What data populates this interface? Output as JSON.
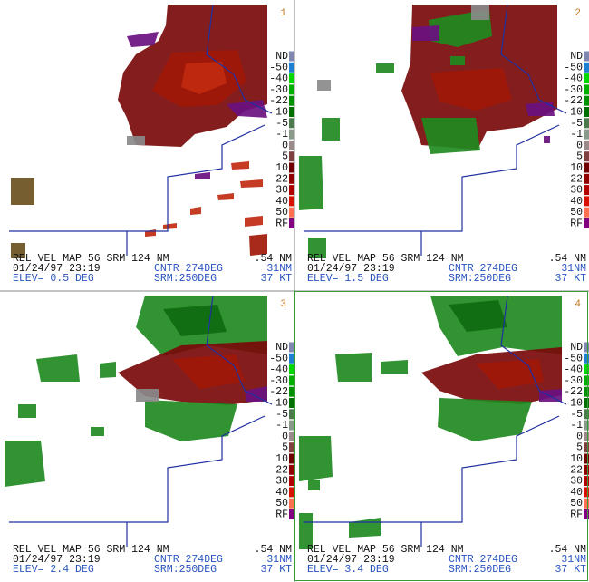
{
  "panels": [
    {
      "number": "1",
      "footer": [
        [
          "REL VEL MAP 56 SRM 124 NM",
          ".54 NM"
        ],
        [
          "01/24/97 23:19",
          "CNTR 274DEG",
          "31NM"
        ],
        [
          "ELEV= 0.5 DEG",
          "SRM:250DEG",
          "37 KT"
        ]
      ]
    },
    {
      "number": "2",
      "footer": [
        [
          "REL VEL MAP 56 SRM 124 NM",
          ".54 NM"
        ],
        [
          "01/24/97 23:19",
          "CNTR 274DEG",
          "31NM"
        ],
        [
          "ELEV= 1.5 DEG",
          "SRM:250DEG",
          "37 KT"
        ]
      ]
    },
    {
      "number": "3",
      "footer": [
        [
          "REL VEL MAP 56 SRM 124 NM",
          ".54 NM"
        ],
        [
          "01/24/97 23:19",
          "CNTR 274DEG",
          "31NM"
        ],
        [
          "ELEV= 2.4 DEG",
          "SRM:250DEG",
          "37 KT"
        ]
      ]
    },
    {
      "number": "4",
      "footer": [
        [
          "REL VEL MAP 56 SRM 124 NM",
          ".54 NM"
        ],
        [
          "01/24/97 23:19",
          "CNTR 274DEG",
          "31NM"
        ],
        [
          "ELEV= 3.4 DEG",
          "SRM:250DEG",
          "37 KT"
        ]
      ]
    }
  ],
  "legend": [
    {
      "label": "ND",
      "color": "#7f86b0"
    },
    {
      "label": "-50",
      "color": "#1f7fd0"
    },
    {
      "label": "-40",
      "color": "#00d800"
    },
    {
      "label": "-30",
      "color": "#00b000"
    },
    {
      "label": "-22",
      "color": "#009000"
    },
    {
      "label": "-10",
      "color": "#007000"
    },
    {
      "label": "-5",
      "color": "#4c7a4c"
    },
    {
      "label": "-1",
      "color": "#8a9a8a"
    },
    {
      "label": "0",
      "color": "#9a8a8a"
    },
    {
      "label": "5",
      "color": "#804040"
    },
    {
      "label": "10",
      "color": "#700000"
    },
    {
      "label": "22",
      "color": "#900000"
    },
    {
      "label": "30",
      "color": "#b00000"
    },
    {
      "label": "40",
      "color": "#d81000"
    },
    {
      "label": "50",
      "color": "#ff7050"
    },
    {
      "label": "RF",
      "color": "#800080"
    }
  ]
}
